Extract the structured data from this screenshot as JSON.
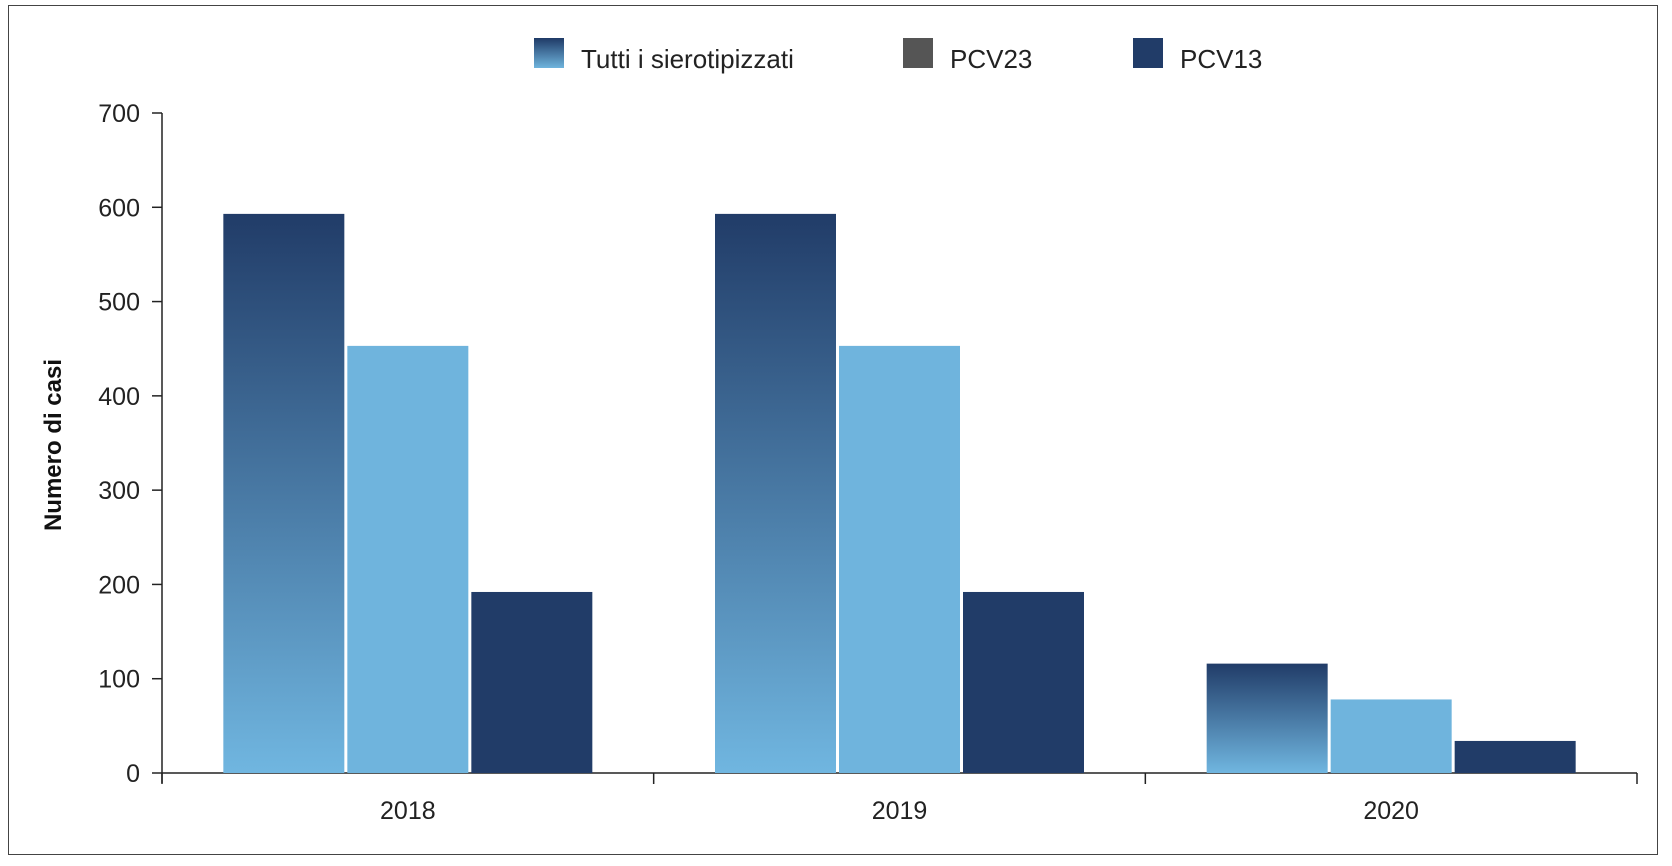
{
  "chart_data": {
    "type": "bar",
    "categories": [
      "2018",
      "2019",
      "2020"
    ],
    "series": [
      {
        "name": "Tutti i sierotipizzati",
        "values": [
          593,
          593,
          116
        ],
        "color": "#5b9fd0"
      },
      {
        "name": "PCV23",
        "values": [
          453,
          453,
          78
        ],
        "color": "#6fb4dd"
      },
      {
        "name": "PCV13",
        "values": [
          192,
          192,
          34
        ],
        "color": "#213c68"
      }
    ],
    "legend_colors": [
      "#2a4a78",
      "#555555",
      "#213c68"
    ],
    "gradient": {
      "top": "#213c68",
      "bottom": "#70b6e0"
    },
    "ylabel": "Numero di casi",
    "xlabel": "",
    "ylim": [
      0,
      700
    ],
    "yticks": [
      "0",
      "100",
      "200",
      "300",
      "400",
      "500",
      "600",
      "700"
    ],
    "grid": false,
    "legend_position": "top-center"
  }
}
